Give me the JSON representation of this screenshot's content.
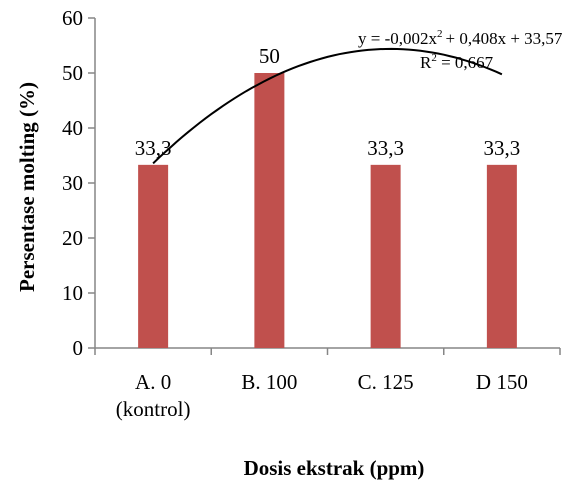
{
  "chart_data": {
    "type": "bar",
    "categories": [
      [
        "A. 0",
        "(kontrol)"
      ],
      [
        "B. 100"
      ],
      [
        "C. 125"
      ],
      [
        "D 150"
      ]
    ],
    "doses": [
      0,
      100,
      125,
      150
    ],
    "values": [
      33.3,
      50,
      33.3,
      33.3
    ],
    "data_labels": [
      "33,3",
      "50",
      "33,3",
      "33,3"
    ],
    "xlabel": "Dosis ekstrak (ppm)",
    "ylabel": "Persentase molting (%)",
    "ylim": [
      0,
      60
    ],
    "y_ticks": [
      0,
      10,
      20,
      30,
      40,
      50,
      60
    ],
    "grid": false,
    "bar_color": "#c0504d",
    "trendline": {
      "type": "polynomial",
      "a": -0.002,
      "b": 0.408,
      "c": 33.57,
      "color": "#000000",
      "equation_label": {
        "prefix": "y = -0,002x",
        "sup": "2",
        "rest": "+ 0,408x + 33,57"
      },
      "r2_label": {
        "prefix": "R",
        "sup": "2",
        "rest": " = 0,667"
      }
    }
  }
}
